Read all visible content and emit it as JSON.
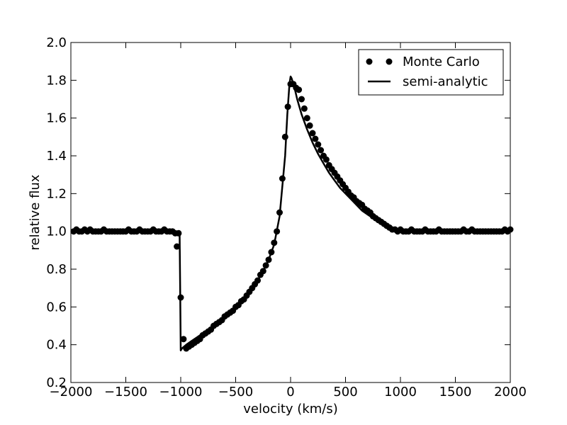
{
  "chart_data": {
    "type": "scatter",
    "title": "",
    "xlabel": "velocity (km/s)",
    "ylabel": "relative flux",
    "xlim": [
      -2000,
      2000
    ],
    "ylim": [
      0.2,
      2.0
    ],
    "x_ticks": [
      -2000,
      -1500,
      -1000,
      -500,
      0,
      500,
      1000,
      1500,
      2000
    ],
    "x_tick_labels": [
      "−2000",
      "−1500",
      "−1000",
      "−500",
      "0",
      "500",
      "1000",
      "1500",
      "2000"
    ],
    "y_ticks": [
      0.2,
      0.4,
      0.6,
      0.8,
      1.0,
      1.2,
      1.4,
      1.6,
      1.8,
      2.0
    ],
    "y_tick_labels": [
      "0.2",
      "0.4",
      "0.6",
      "0.8",
      "1.0",
      "1.2",
      "1.4",
      "1.6",
      "1.8",
      "2.0"
    ],
    "grid": false,
    "legend_position": "top-right",
    "color": "#000000",
    "series": [
      {
        "name": "Monte Carlo",
        "style": "markers",
        "x": [
          -1975,
          -1950,
          -1925,
          -1900,
          -1875,
          -1850,
          -1825,
          -1800,
          -1775,
          -1750,
          -1725,
          -1700,
          -1675,
          -1650,
          -1625,
          -1600,
          -1575,
          -1550,
          -1525,
          -1500,
          -1475,
          -1450,
          -1425,
          -1400,
          -1375,
          -1350,
          -1325,
          -1300,
          -1275,
          -1250,
          -1225,
          -1200,
          -1175,
          -1150,
          -1125,
          -1100,
          -1075,
          -1050,
          -1035,
          -1020,
          -1000,
          -975,
          -950,
          -925,
          -900,
          -875,
          -850,
          -825,
          -800,
          -775,
          -750,
          -725,
          -700,
          -675,
          -650,
          -625,
          -600,
          -575,
          -550,
          -525,
          -500,
          -475,
          -450,
          -425,
          -400,
          -375,
          -350,
          -325,
          -300,
          -275,
          -250,
          -225,
          -200,
          -175,
          -150,
          -125,
          -100,
          -75,
          -50,
          -25,
          0,
          25,
          50,
          75,
          100,
          125,
          150,
          175,
          200,
          225,
          250,
          275,
          300,
          325,
          350,
          375,
          400,
          425,
          450,
          475,
          500,
          525,
          550,
          575,
          600,
          625,
          650,
          675,
          700,
          725,
          750,
          775,
          800,
          825,
          850,
          875,
          900,
          925,
          950,
          975,
          1000,
          1025,
          1050,
          1075,
          1100,
          1125,
          1150,
          1175,
          1200,
          1225,
          1250,
          1275,
          1300,
          1325,
          1350,
          1375,
          1400,
          1425,
          1450,
          1475,
          1500,
          1525,
          1550,
          1575,
          1600,
          1625,
          1650,
          1675,
          1700,
          1725,
          1750,
          1775,
          1800,
          1825,
          1850,
          1875,
          1900,
          1925,
          1950,
          1975,
          2000
        ],
        "y": [
          1.0,
          1.01,
          1.0,
          1.0,
          1.01,
          1.0,
          1.01,
          1.0,
          1.0,
          1.0,
          1.0,
          1.01,
          1.0,
          1.0,
          1.0,
          1.0,
          1.0,
          1.0,
          1.0,
          1.0,
          1.01,
          1.0,
          1.0,
          1.0,
          1.01,
          1.0,
          1.0,
          1.0,
          1.0,
          1.01,
          1.0,
          1.0,
          1.0,
          1.01,
          1.0,
          1.0,
          1.0,
          0.99,
          0.92,
          0.99,
          0.65,
          0.43,
          0.38,
          0.39,
          0.4,
          0.41,
          0.42,
          0.43,
          0.45,
          0.46,
          0.47,
          0.48,
          0.5,
          0.51,
          0.52,
          0.53,
          0.55,
          0.56,
          0.57,
          0.58,
          0.6,
          0.61,
          0.63,
          0.64,
          0.66,
          0.68,
          0.7,
          0.72,
          0.74,
          0.77,
          0.79,
          0.82,
          0.85,
          0.89,
          0.94,
          1.0,
          1.1,
          1.28,
          1.5,
          1.66,
          1.78,
          1.78,
          1.76,
          1.75,
          1.7,
          1.65,
          1.6,
          1.56,
          1.52,
          1.49,
          1.46,
          1.43,
          1.4,
          1.38,
          1.35,
          1.33,
          1.31,
          1.29,
          1.27,
          1.25,
          1.23,
          1.21,
          1.19,
          1.18,
          1.16,
          1.15,
          1.14,
          1.12,
          1.11,
          1.1,
          1.08,
          1.07,
          1.06,
          1.05,
          1.04,
          1.03,
          1.02,
          1.01,
          1.01,
          1.0,
          1.01,
          1.0,
          1.0,
          1.0,
          1.01,
          1.0,
          1.0,
          1.0,
          1.0,
          1.01,
          1.0,
          1.0,
          1.0,
          1.0,
          1.01,
          1.0,
          1.0,
          1.0,
          1.0,
          1.0,
          1.0,
          1.0,
          1.0,
          1.01,
          1.0,
          1.0,
          1.01,
          1.0,
          1.0,
          1.0,
          1.0,
          1.0,
          1.0,
          1.0,
          1.0,
          1.0,
          1.0,
          1.0,
          1.01,
          1.0,
          1.01
        ]
      },
      {
        "name": "semi-analytic",
        "style": "line",
        "x": [
          -2000,
          -1010,
          -1005,
          -1000,
          -990,
          -950,
          -900,
          -850,
          -800,
          -750,
          -700,
          -650,
          -600,
          -550,
          -500,
          -450,
          -400,
          -350,
          -300,
          -250,
          -200,
          -150,
          -100,
          -50,
          -30,
          -10,
          0,
          10,
          20,
          40,
          60,
          80,
          100,
          150,
          200,
          250,
          300,
          350,
          400,
          450,
          500,
          550,
          600,
          650,
          700,
          750,
          800,
          850,
          900,
          950,
          980,
          1000,
          2000
        ],
        "y": [
          1.0,
          1.0,
          0.7,
          0.37,
          0.38,
          0.4,
          0.42,
          0.44,
          0.46,
          0.48,
          0.5,
          0.52,
          0.54,
          0.57,
          0.59,
          0.62,
          0.66,
          0.7,
          0.74,
          0.79,
          0.85,
          0.93,
          1.08,
          1.4,
          1.62,
          1.78,
          1.82,
          1.81,
          1.79,
          1.75,
          1.7,
          1.66,
          1.62,
          1.54,
          1.47,
          1.41,
          1.36,
          1.31,
          1.27,
          1.23,
          1.2,
          1.17,
          1.14,
          1.11,
          1.09,
          1.07,
          1.05,
          1.03,
          1.02,
          1.01,
          1.0,
          1.0,
          1.0
        ]
      }
    ]
  }
}
